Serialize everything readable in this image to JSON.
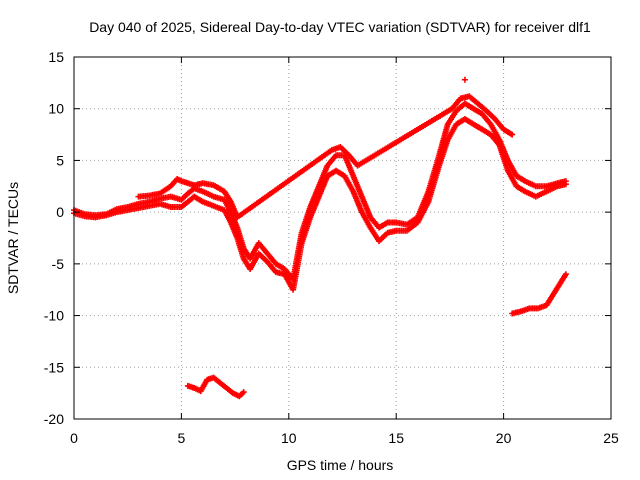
{
  "chart_data": {
    "type": "scatter",
    "title": "Day 040 of 2025, Sidereal Day-to-day VTEC variation (SDTVAR) for receiver dlf1",
    "xlabel": "GPS time / hours",
    "ylabel": "SDTVAR / TECUs",
    "xlim": [
      0,
      25
    ],
    "ylim": [
      -20,
      15
    ],
    "xticks": [
      "0",
      "5",
      "10",
      "15",
      "20",
      "25"
    ],
    "yticks": [
      "15",
      "10",
      "5",
      "0",
      "-5",
      "-10",
      "-15",
      "-20"
    ],
    "grid": true,
    "marker": "plus",
    "color": "#ff0000",
    "series": [
      {
        "name": "main-trace-a",
        "x": [
          0.0,
          0.5,
          1.0,
          1.5,
          2.0,
          2.5,
          3.0,
          3.5,
          4.0,
          4.5,
          5.0,
          5.3,
          5.6,
          6.0,
          6.5,
          7.0,
          7.3,
          7.6,
          7.9,
          8.2,
          8.6,
          9.0,
          9.4,
          9.8,
          10.2,
          10.6,
          11.0,
          11.4,
          11.8,
          12.2,
          12.6,
          13.0,
          13.4,
          13.8,
          14.2,
          14.6,
          15.0,
          15.5,
          16.0,
          16.5,
          17.0,
          17.4,
          17.8,
          18.2,
          18.6,
          19.0,
          19.4,
          19.8,
          20.2,
          20.6,
          21.0,
          21.5,
          22.0,
          22.5,
          22.9
        ],
        "y": [
          0.2,
          -0.2,
          -0.3,
          -0.2,
          0.3,
          0.5,
          0.8,
          1.0,
          1.3,
          1.5,
          1.2,
          1.8,
          2.3,
          2.0,
          1.5,
          1.2,
          0.0,
          -1.5,
          -3.5,
          -4.5,
          -3.0,
          -4.0,
          -5.0,
          -5.5,
          -6.5,
          -2.0,
          0.5,
          2.5,
          4.5,
          5.5,
          5.5,
          3.5,
          1.5,
          -0.5,
          -1.5,
          -1.0,
          -1.0,
          -1.2,
          -0.5,
          2.0,
          5.5,
          8.5,
          9.8,
          10.5,
          10.0,
          9.5,
          8.5,
          7.0,
          5.0,
          3.5,
          3.0,
          2.5,
          2.5,
          2.8,
          3.0
        ]
      },
      {
        "name": "main-trace-b",
        "x": [
          0.0,
          0.5,
          1.0,
          1.5,
          2.0,
          2.5,
          3.0,
          3.5,
          4.0,
          4.5,
          5.0,
          5.3,
          5.6,
          6.0,
          6.5,
          7.0,
          7.3,
          7.6,
          7.9,
          8.2,
          8.6,
          9.0,
          9.4,
          9.8,
          10.2,
          10.6,
          11.0,
          11.4,
          11.8,
          12.2,
          12.6,
          13.0,
          13.4,
          13.8,
          14.2,
          14.6,
          15.0,
          15.5,
          16.0,
          16.5,
          17.0,
          17.4,
          17.8,
          18.2,
          18.6,
          19.0,
          19.4,
          19.8,
          20.2,
          20.6,
          21.0,
          21.5,
          22.0,
          22.5,
          22.9
        ],
        "y": [
          -0.1,
          -0.4,
          -0.5,
          -0.3,
          0.0,
          0.2,
          0.4,
          0.6,
          0.8,
          0.5,
          0.5,
          1.0,
          1.5,
          1.0,
          0.6,
          0.2,
          -1.0,
          -2.5,
          -4.5,
          -5.5,
          -4.0,
          -4.8,
          -5.8,
          -6.0,
          -7.5,
          -3.0,
          -0.5,
          1.5,
          3.5,
          4.0,
          3.5,
          2.0,
          0.0,
          -1.5,
          -2.8,
          -2.0,
          -1.8,
          -1.8,
          -1.0,
          1.0,
          4.5,
          7.0,
          8.5,
          9.0,
          8.5,
          8.0,
          7.5,
          6.5,
          4.0,
          2.5,
          2.0,
          1.5,
          2.0,
          2.5,
          2.7
        ]
      },
      {
        "name": "main-trace-c",
        "x": [
          3.0,
          3.5,
          4.0,
          4.5,
          4.8,
          5.0,
          5.3,
          5.6,
          6.0,
          6.5,
          7.0,
          7.3,
          7.6,
          12.0,
          12.4,
          12.8,
          13.2,
          17.6,
          18.0,
          18.4,
          18.8,
          19.2,
          19.6,
          20.0,
          20.4
        ],
        "y": [
          1.5,
          1.6,
          1.8,
          2.5,
          3.2,
          3.0,
          2.8,
          2.6,
          2.8,
          2.6,
          2.0,
          1.0,
          -0.5,
          6.0,
          6.3,
          5.5,
          4.5,
          10.0,
          11.0,
          11.2,
          10.5,
          9.8,
          9.0,
          8.0,
          7.5
        ]
      },
      {
        "name": "segment-low-left",
        "x": [
          5.3,
          5.6,
          5.9,
          6.2,
          6.5,
          6.8,
          7.1,
          7.4,
          7.7,
          7.9
        ],
        "y": [
          -16.8,
          -17.0,
          -17.3,
          -16.2,
          -16.0,
          -16.5,
          -17.0,
          -17.5,
          -17.8,
          -17.4
        ]
      },
      {
        "name": "segment-low-right",
        "x": [
          20.4,
          20.8,
          21.2,
          21.6,
          22.0,
          22.3,
          22.6,
          22.9
        ],
        "y": [
          -9.8,
          -9.6,
          -9.3,
          -9.3,
          -9.0,
          -8.0,
          -7.0,
          -6.0
        ]
      },
      {
        "name": "outlier",
        "x": [
          18.2
        ],
        "y": [
          12.8
        ]
      }
    ]
  }
}
